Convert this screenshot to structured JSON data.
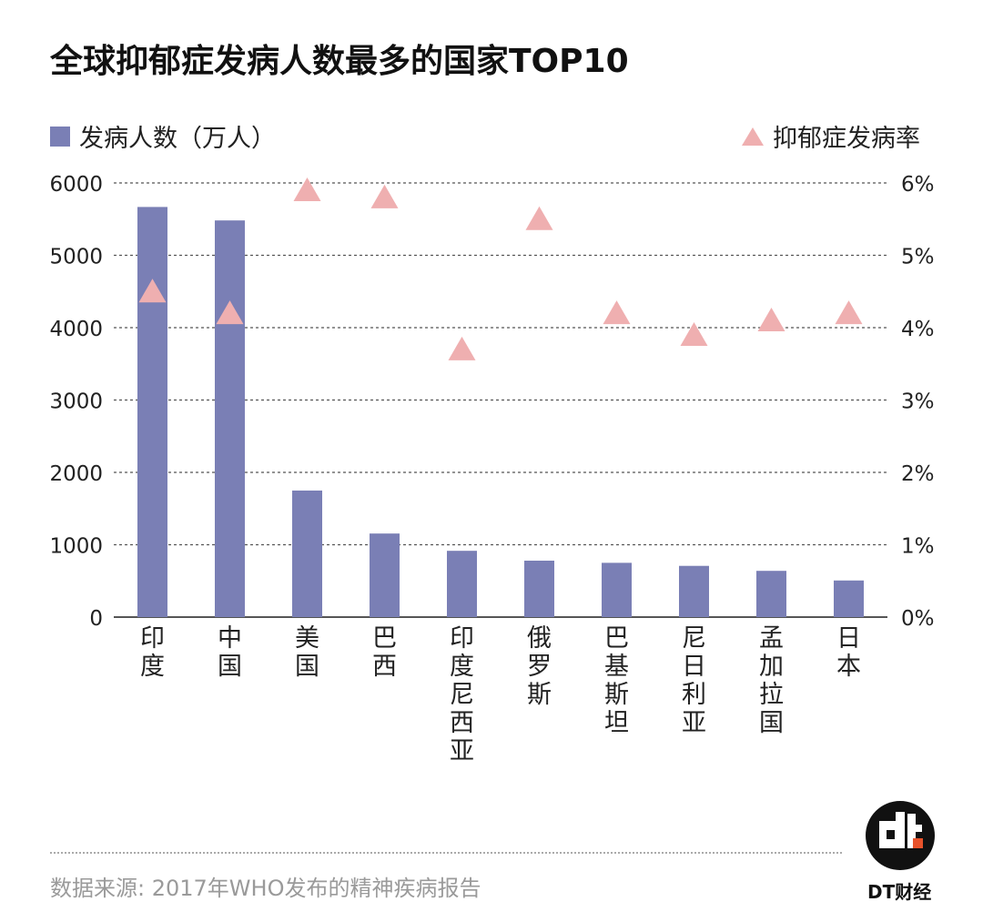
{
  "title": "全球抑郁症发病人数最多的国家TOP10",
  "legend": {
    "bars": "发病人数（万人）",
    "markers": "抑郁症发病率"
  },
  "source": "数据来源: 2017年WHO发布的精神疾病报告",
  "brand": "DT财经",
  "colors": {
    "bar": "#7a7fb5",
    "marker": "#efafb0",
    "grid": "#555555"
  },
  "chart_data": {
    "type": "bar",
    "title": "全球抑郁症发病人数最多的国家TOP10",
    "categories": [
      "印度",
      "中国",
      "美国",
      "巴西",
      "印度尼西亚",
      "俄罗斯",
      "巴基斯坦",
      "尼日利亚",
      "孟加拉国",
      "日本"
    ],
    "series": [
      {
        "name": "发病人数（万人）",
        "type": "bar",
        "axis": "left",
        "values": [
          5668,
          5482,
          1749,
          1155,
          916,
          780,
          750,
          708,
          639,
          506
        ]
      },
      {
        "name": "抑郁症发病率",
        "type": "scatter",
        "marker": "triangle",
        "axis": "right",
        "values": [
          4.5,
          4.2,
          5.9,
          5.8,
          3.7,
          5.5,
          4.2,
          3.9,
          4.1,
          4.2
        ]
      }
    ],
    "y_left": {
      "ylim": [
        0,
        6000
      ],
      "ticks": [
        "0",
        "1000",
        "2000",
        "3000",
        "4000",
        "5000",
        "6000"
      ]
    },
    "y_right": {
      "ylim": [
        0,
        6
      ],
      "ticks": [
        "0%",
        "1%",
        "2%",
        "3%",
        "4%",
        "5%",
        "6%"
      ]
    },
    "grid": true,
    "legend_placement": "top"
  }
}
